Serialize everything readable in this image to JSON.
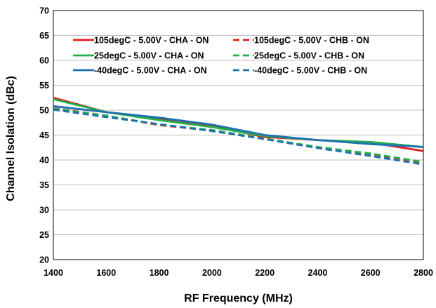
{
  "chart_data": {
    "type": "line",
    "title": "",
    "xlabel": "RF Frequency (MHz)",
    "ylabel": "Channel Isolation (dBc)",
    "xlim": [
      1400,
      2800
    ],
    "ylim": [
      20,
      70
    ],
    "x_ticks": [
      1400,
      1600,
      1800,
      2000,
      2200,
      2400,
      2600,
      2800
    ],
    "y_ticks": [
      20,
      25,
      30,
      35,
      40,
      45,
      50,
      55,
      60,
      65,
      70
    ],
    "grid": "horizontal",
    "legend_position": "top, inside plot (two columns)",
    "x": [
      1400,
      1600,
      1800,
      2000,
      2200,
      2400,
      2600,
      2800
    ],
    "series": [
      {
        "name": "105degC - 5.00V - CHA - ON",
        "color": "#e41a1c",
        "dash": "solid",
        "values": [
          52.5,
          49.6,
          48.2,
          46.8,
          44.6,
          44.0,
          43.5,
          41.8
        ]
      },
      {
        "name": "105degC - 5.00V - CHB - ON",
        "color": "#e41a1c",
        "dash": "dashed",
        "values": [
          50.4,
          48.9,
          47.0,
          45.9,
          44.2,
          42.5,
          41.2,
          39.5
        ]
      },
      {
        "name": "25degC - 5.00V - CHA - ON",
        "color": "#21b24b",
        "dash": "solid",
        "values": [
          52.2,
          49.6,
          48.0,
          46.6,
          44.8,
          44.0,
          43.6,
          42.6
        ]
      },
      {
        "name": "25degC - 5.00V - CHB - ON",
        "color": "#21b24b",
        "dash": "dashed",
        "values": [
          50.3,
          48.9,
          47.1,
          46.0,
          44.3,
          42.6,
          41.3,
          39.6
        ]
      },
      {
        "name": "-40degC - 5.00V - CHA - ON",
        "color": "#1f72b0",
        "dash": "solid",
        "values": [
          50.8,
          49.6,
          48.5,
          47.1,
          45.0,
          44.0,
          43.2,
          42.6
        ]
      },
      {
        "name": "-40degC - 5.00V - CHB - ON",
        "color": "#1f72b0",
        "dash": "dashed",
        "values": [
          50.1,
          48.6,
          47.2,
          45.8,
          44.2,
          42.4,
          40.8,
          39.1
        ]
      }
    ]
  }
}
